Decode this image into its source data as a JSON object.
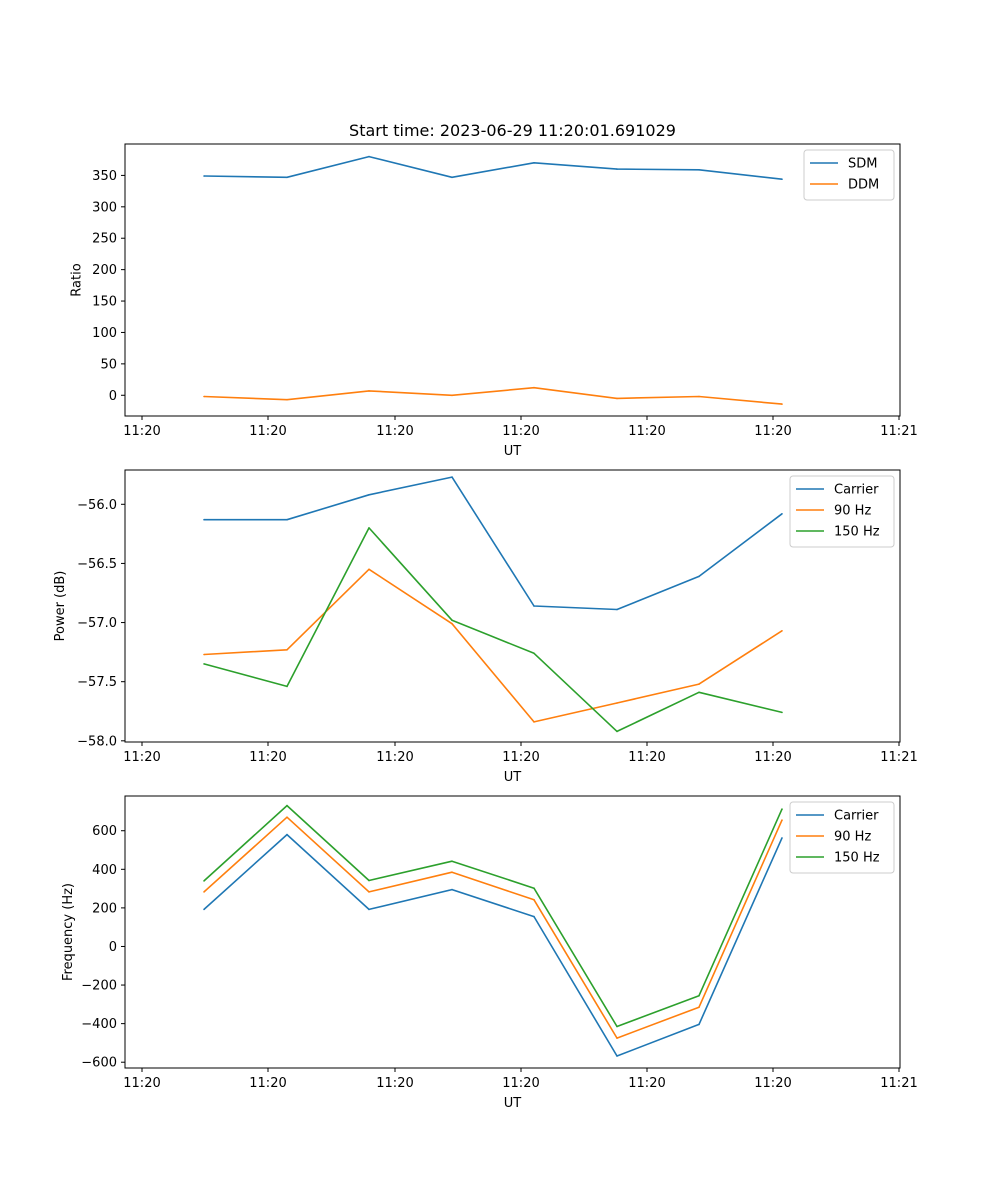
{
  "chart_data": [
    {
      "type": "line",
      "title": "Start time: 2023-06-29 11:20:01.691029",
      "xlabel": "UT",
      "ylabel": "Ratio",
      "x_tick_labels": [
        "11:20",
        "11:20",
        "11:20",
        "11:20",
        "11:20",
        "11:20",
        "11:20",
        "11:21"
      ],
      "y_ticks": [
        0,
        50,
        100,
        150,
        200,
        250,
        300,
        350
      ],
      "ylim": [
        -33,
        400
      ],
      "grid": false,
      "legend": "top-right",
      "series": [
        {
          "name": "SDM",
          "color": "#1f77b4",
          "values": [
            349,
            347,
            380,
            347,
            370,
            360,
            359,
            344
          ]
        },
        {
          "name": "DDM",
          "color": "#ff7f0e",
          "values": [
            -2,
            -7,
            7,
            0,
            12,
            -5,
            -2,
            -14
          ]
        }
      ]
    },
    {
      "type": "line",
      "title": "",
      "xlabel": "UT",
      "ylabel": "Power (dB)",
      "x_tick_labels": [
        "11:20",
        "11:20",
        "11:20",
        "11:20",
        "11:20",
        "11:20",
        "11:20",
        "11:21"
      ],
      "y_ticks": [
        -58.0,
        -57.5,
        -57.0,
        -56.5,
        -56.0
      ],
      "ylim": [
        -58.01,
        -55.71
      ],
      "grid": false,
      "legend": "top-right",
      "series": [
        {
          "name": "Carrier",
          "color": "#1f77b4",
          "values": [
            -56.13,
            -56.13,
            -55.92,
            -55.77,
            -56.86,
            -56.89,
            -56.61,
            -56.08
          ]
        },
        {
          "name": "90 Hz",
          "color": "#ff7f0e",
          "values": [
            -57.27,
            -57.23,
            -56.55,
            -57.01,
            -57.84,
            -57.68,
            -57.52,
            -57.07
          ]
        },
        {
          "name": "150 Hz",
          "color": "#2ca02c",
          "values": [
            -57.35,
            -57.54,
            -56.2,
            -56.98,
            -57.26,
            -57.92,
            -57.59,
            -57.76
          ]
        }
      ]
    },
    {
      "type": "line",
      "title": "",
      "xlabel": "UT",
      "ylabel": "Frequency (Hz)",
      "x_tick_labels": [
        "11:20",
        "11:20",
        "11:20",
        "11:20",
        "11:20",
        "11:20",
        "11:20",
        "11:21"
      ],
      "y_ticks": [
        -600,
        -400,
        -200,
        0,
        200,
        400,
        600
      ],
      "ylim": [
        -630,
        780
      ],
      "grid": false,
      "legend": "top-right",
      "series": [
        {
          "name": "Carrier",
          "color": "#1f77b4",
          "values": [
            192,
            580,
            192,
            295,
            155,
            -568,
            -404,
            563
          ]
        },
        {
          "name": "90 Hz",
          "color": "#ff7f0e",
          "values": [
            283,
            670,
            283,
            385,
            242,
            -475,
            -315,
            655
          ]
        },
        {
          "name": "150 Hz",
          "color": "#2ca02c",
          "values": [
            340,
            730,
            342,
            442,
            302,
            -415,
            -255,
            712
          ]
        }
      ]
    }
  ]
}
